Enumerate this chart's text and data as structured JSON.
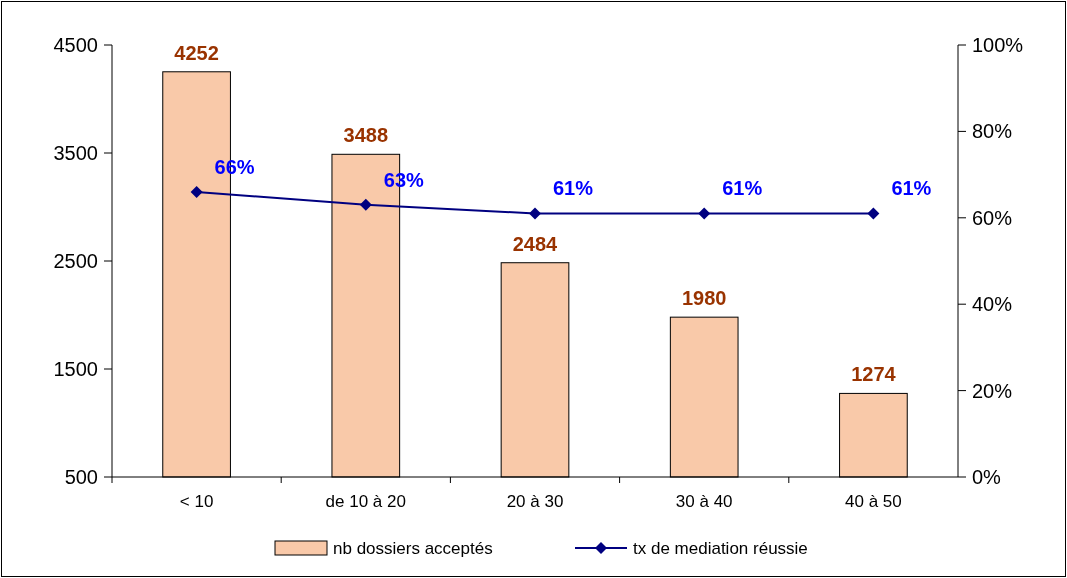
{
  "chart_data": {
    "type": "bar",
    "categories": [
      "< 10",
      "de 10 à 20",
      "20 à 30",
      "30 à 40",
      "40 à 50"
    ],
    "series": [
      {
        "name": "nb dossiers acceptés",
        "color": "#f9c9a9",
        "values": [
          4252,
          3488,
          2484,
          1980,
          1274
        ],
        "value_labels": [
          "4252",
          "3488",
          "2484",
          "1980",
          "1274"
        ]
      },
      {
        "name": "tx de mediation réussie",
        "type": "line",
        "axis": "y2",
        "color": "#000080",
        "values": [
          66,
          63,
          61,
          61,
          61
        ],
        "value_labels": [
          "66%",
          "63%",
          "61%",
          "61%",
          "61%"
        ],
        "marker": "diamond"
      }
    ],
    "ylim": [
      500,
      4500
    ],
    "yticks": [
      500,
      1500,
      2500,
      3500,
      4500
    ],
    "y2lim": [
      0,
      100
    ],
    "y2ticks": [
      {
        "value": 0,
        "label": "0%"
      },
      {
        "value": 20,
        "label": "20%"
      },
      {
        "value": 40,
        "label": "40%"
      },
      {
        "value": 60,
        "label": "60%"
      },
      {
        "value": 80,
        "label": "80%"
      },
      {
        "value": 100,
        "label": "100%"
      }
    ],
    "legend": "bottom",
    "grid": false
  }
}
